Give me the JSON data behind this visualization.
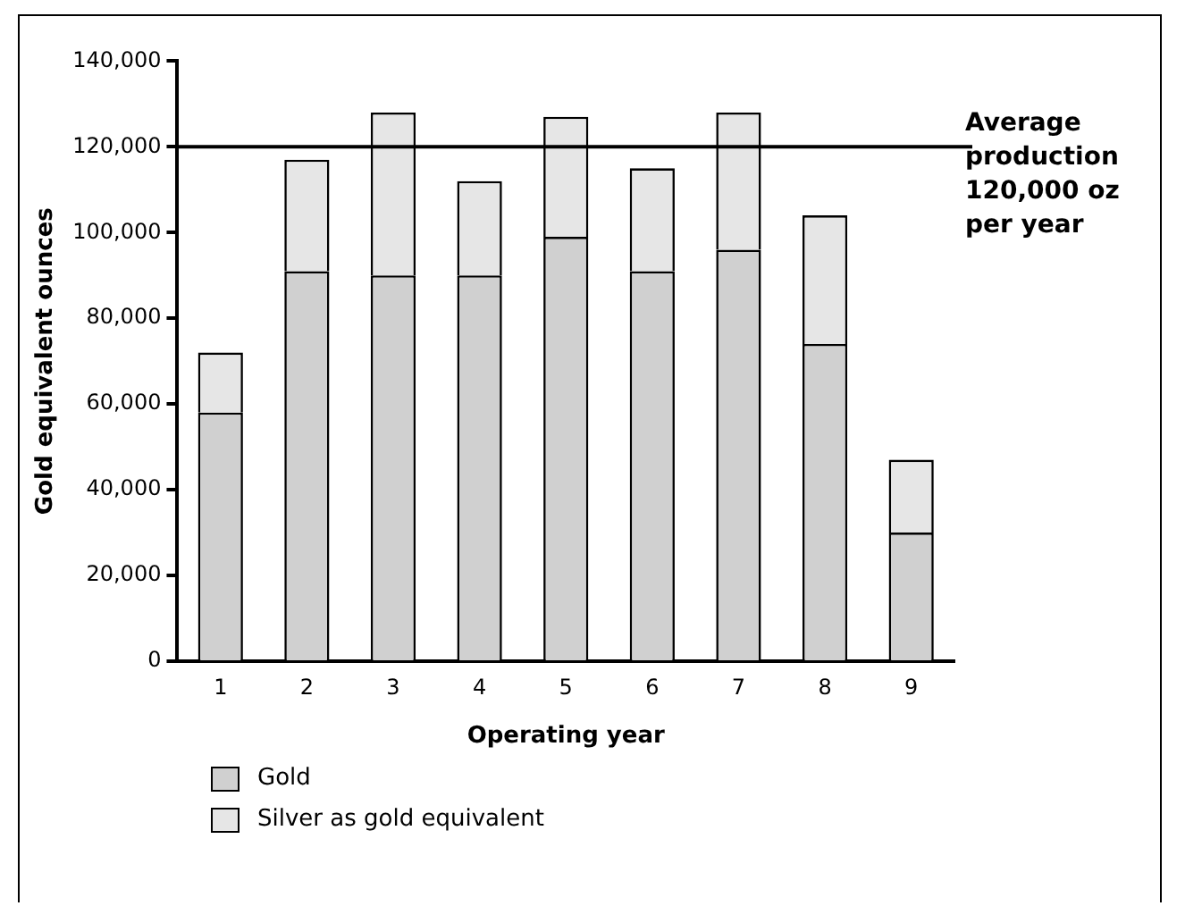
{
  "chart_data": {
    "type": "bar",
    "stacked": true,
    "xlabel": "Operating year",
    "ylabel": "Gold equivalent ounces",
    "categories": [
      "1",
      "2",
      "3",
      "4",
      "5",
      "6",
      "7",
      "8",
      "9"
    ],
    "series": [
      {
        "name": "Gold",
        "color": "#d0d0d0",
        "values": [
          58000,
          91000,
          90000,
          90000,
          99000,
          91000,
          96000,
          74000,
          30000
        ]
      },
      {
        "name": "Silver as gold equivalent",
        "color": "#e6e6e6",
        "values": [
          14000,
          26000,
          38000,
          22000,
          28000,
          24000,
          32000,
          30000,
          17000
        ]
      }
    ],
    "ylim": [
      0,
      140000
    ],
    "yticks": [
      {
        "value": 0,
        "label": "0"
      },
      {
        "value": 20000,
        "label": "20,000"
      },
      {
        "value": 40000,
        "label": "40,000"
      },
      {
        "value": 60000,
        "label": "60,000"
      },
      {
        "value": 80000,
        "label": "80,000"
      },
      {
        "value": 100000,
        "label": "100,000"
      },
      {
        "value": 120000,
        "label": "120,000"
      },
      {
        "value": 140000,
        "label": "140,000"
      }
    ],
    "ref_lines": [
      {
        "axis": "y",
        "value": 120000,
        "label": "Average production 120,000 oz per year",
        "color": "#000000"
      }
    ],
    "grid": false,
    "legend": "bottom left"
  }
}
